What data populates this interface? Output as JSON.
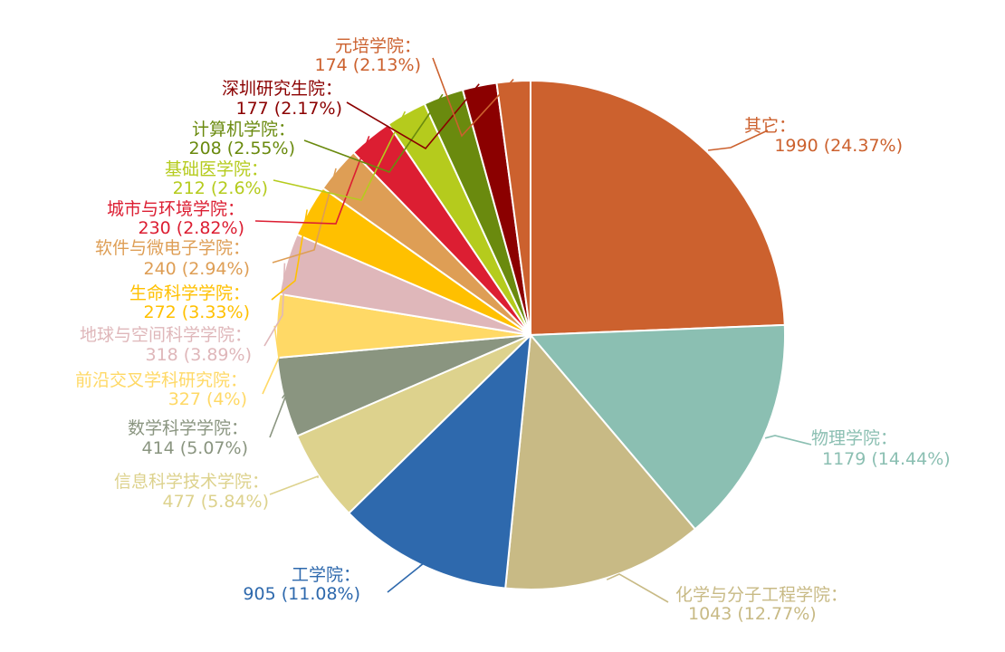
{
  "chart_data": {
    "type": "pie",
    "title": "",
    "slices": [
      {
        "label": "其它",
        "value": 1990,
        "percent": "24.37%",
        "color": "#CC612E"
      },
      {
        "label": "物理学院",
        "value": 1179,
        "percent": "14.44%",
        "color": "#8BBFB2"
      },
      {
        "label": "化学与分子工程学院",
        "value": 1043,
        "percent": "12.77%",
        "color": "#C8BA85"
      },
      {
        "label": "工学院",
        "value": 905,
        "percent": "11.08%",
        "color": "#2E69AD"
      },
      {
        "label": "信息科学技术学院",
        "value": 477,
        "percent": "5.84%",
        "color": "#DDD28D"
      },
      {
        "label": "数学科学学院",
        "value": 414,
        "percent": "5.07%",
        "color": "#8A9580"
      },
      {
        "label": "前沿交叉学科研究院",
        "value": 327,
        "percent": "4%",
        "color": "#FFD966"
      },
      {
        "label": "地球与空间科学学院",
        "value": 318,
        "percent": "3.89%",
        "color": "#DFB7BA"
      },
      {
        "label": "生命科学学院",
        "value": 272,
        "percent": "3.33%",
        "color": "#FFC000"
      },
      {
        "label": "软件与微电子学院",
        "value": 240,
        "percent": "2.94%",
        "color": "#DE9E55"
      },
      {
        "label": "城市与环境学院",
        "value": 230,
        "percent": "2.82%",
        "color": "#DC1E32"
      },
      {
        "label": "基础医学院",
        "value": 212,
        "percent": "2.6%",
        "color": "#B5CB1D"
      },
      {
        "label": "计算机学院",
        "value": 208,
        "percent": "2.55%",
        "color": "#6A8A0E"
      },
      {
        "label": "深圳研究生院",
        "value": 177,
        "percent": "2.17%",
        "color": "#8B0000"
      },
      {
        "label": "元培学院",
        "value": 174,
        "percent": "2.13%",
        "color": "#CC612E"
      }
    ]
  }
}
